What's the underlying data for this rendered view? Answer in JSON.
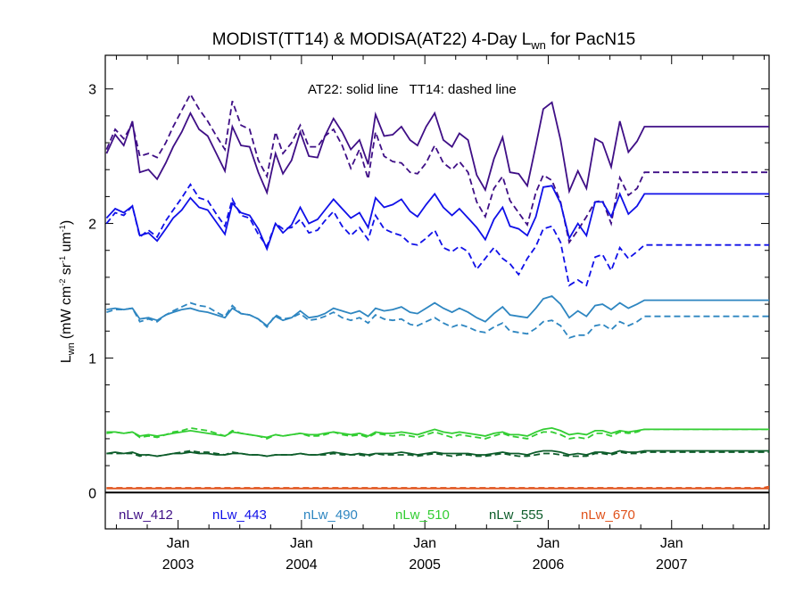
{
  "chart_data": {
    "type": "line",
    "title_prefix": "MODIST(TT14) & MODISA(AT22) 4-Day L",
    "title_sub": "wn",
    "title_suffix": " for PacN15",
    "annotation": "AT22: solid line   TT14: dashed line",
    "ylabel_main": "L",
    "ylabel_sub": "wn",
    "ylabel_units": "(mW cm",
    "ylabel_sup1": "-2",
    "ylabel_sr": " sr",
    "ylabel_sup2": "-1",
    "ylabel_um": " um",
    "ylabel_sup3": "-1",
    "ylabel_close": ")",
    "xlim": [
      2002.41,
      2007.79
    ],
    "ylim": [
      -0.27,
      3.25
    ],
    "yticks": [
      {
        "value": 0,
        "label": "0"
      },
      {
        "value": 1,
        "label": "1"
      },
      {
        "value": 2,
        "label": "2"
      },
      {
        "value": 3,
        "label": "3"
      }
    ],
    "xticks": [
      {
        "value": 2003.0,
        "line1": "Jan",
        "line2": "2003"
      },
      {
        "value": 2004.0,
        "line1": "Jan",
        "line2": "2004"
      },
      {
        "value": 2005.0,
        "line1": "Jan",
        "line2": "2005"
      },
      {
        "value": 2006.0,
        "line1": "Jan",
        "line2": "2006"
      },
      {
        "value": 2007.0,
        "line1": "Jan",
        "line2": "2007"
      }
    ],
    "x": [
      2002.42,
      2002.49,
      2002.56,
      2002.63,
      2002.69,
      2002.76,
      2002.83,
      2002.9,
      2002.96,
      2003.03,
      2003.1,
      2003.17,
      2003.24,
      2003.31,
      2003.38,
      2003.44,
      2003.51,
      2003.58,
      2003.65,
      2003.72,
      2003.79,
      2003.85,
      2003.92,
      2003.99,
      2004.06,
      2004.13,
      2004.19,
      2004.26,
      2004.33,
      2004.4,
      2004.47,
      2004.54,
      2004.6,
      2004.67,
      2004.74,
      2004.81,
      2004.88,
      2004.94,
      2005.01,
      2005.08,
      2005.15,
      2005.22,
      2005.28,
      2005.35,
      2005.42,
      2005.49,
      2005.56,
      2005.63,
      2005.69,
      2005.76,
      2005.83,
      2005.9,
      2005.96,
      2006.03,
      2006.1,
      2006.17,
      2006.24,
      2006.31,
      2006.38,
      2006.44,
      2006.51,
      2006.58,
      2006.65,
      2006.72,
      2006.78,
      2006.85,
      2006.92,
      2006.99,
      2007.06,
      2007.13,
      2007.19,
      2007.26,
      2007.33,
      2007.4,
      2007.47,
      2007.54,
      2007.6,
      2007.67,
      2007.74,
      2007.79
    ],
    "series": [
      {
        "name": "nLw_412",
        "color": "#3f0f86",
        "solid": [
          2.52,
          2.66,
          2.58,
          2.76,
          2.38,
          2.4,
          2.33,
          2.45,
          2.57,
          2.68,
          2.82,
          2.7,
          2.65,
          2.52,
          2.39,
          2.72,
          2.58,
          2.57,
          2.38,
          2.23,
          2.52,
          2.37,
          2.47,
          2.68,
          2.5,
          2.49,
          2.65,
          2.78,
          2.68,
          2.55,
          2.62,
          2.44,
          2.81,
          2.65,
          2.66,
          2.72,
          2.62,
          2.58,
          2.72,
          2.82,
          2.62,
          2.57,
          2.67,
          2.62,
          2.36,
          2.25,
          2.48,
          2.64,
          2.38,
          2.37,
          2.28,
          2.58,
          2.85,
          2.9,
          2.62,
          2.24,
          2.39,
          2.26,
          2.63,
          2.6,
          2.42,
          2.76,
          2.53,
          2.61,
          2.72,
          2.72,
          2.72,
          2.72,
          2.72,
          2.72,
          2.72,
          2.72,
          2.72,
          2.72,
          2.72,
          2.72,
          2.72,
          2.72,
          2.72,
          2.72
        ],
        "dashed": [
          2.55,
          2.7,
          2.63,
          2.74,
          2.5,
          2.52,
          2.49,
          2.6,
          2.72,
          2.84,
          2.96,
          2.85,
          2.76,
          2.65,
          2.55,
          2.91,
          2.73,
          2.7,
          2.47,
          2.35,
          2.68,
          2.52,
          2.6,
          2.73,
          2.57,
          2.57,
          2.65,
          2.7,
          2.58,
          2.41,
          2.55,
          2.33,
          2.68,
          2.5,
          2.46,
          2.45,
          2.38,
          2.37,
          2.45,
          2.58,
          2.45,
          2.4,
          2.46,
          2.38,
          2.16,
          2.05,
          2.26,
          2.35,
          2.17,
          2.08,
          1.99,
          2.23,
          2.36,
          2.32,
          2.16,
          1.86,
          1.95,
          2.05,
          2.16,
          2.17,
          2.0,
          2.34,
          2.21,
          2.26,
          2.38,
          2.38,
          2.38,
          2.38,
          2.38,
          2.38,
          2.38,
          2.38,
          2.38,
          2.38,
          2.38,
          2.38,
          2.38,
          2.38,
          2.38,
          2.38
        ]
      },
      {
        "name": "nLw_443",
        "color": "#1010e8",
        "solid": [
          2.04,
          2.11,
          2.08,
          2.13,
          1.91,
          1.93,
          1.87,
          1.96,
          2.04,
          2.1,
          2.19,
          2.12,
          2.1,
          2.01,
          1.92,
          2.15,
          2.08,
          2.06,
          1.96,
          1.81,
          2.0,
          1.93,
          1.99,
          2.12,
          2.0,
          2.03,
          2.1,
          2.18,
          2.11,
          2.04,
          2.08,
          1.97,
          2.19,
          2.12,
          2.14,
          2.18,
          2.09,
          2.05,
          2.14,
          2.22,
          2.12,
          2.06,
          2.11,
          2.04,
          1.97,
          1.88,
          2.03,
          2.12,
          1.98,
          1.96,
          1.91,
          2.05,
          2.27,
          2.28,
          2.15,
          1.89,
          2.0,
          1.91,
          2.16,
          2.16,
          2.05,
          2.22,
          2.07,
          2.13,
          2.22,
          2.22,
          2.22,
          2.22,
          2.22,
          2.22,
          2.22,
          2.22,
          2.22,
          2.22,
          2.22,
          2.22,
          2.22,
          2.22,
          2.22,
          2.22
        ],
        "dashed": [
          2.0,
          2.08,
          2.06,
          2.13,
          1.9,
          1.95,
          1.9,
          2.02,
          2.1,
          2.19,
          2.29,
          2.19,
          2.17,
          2.07,
          1.98,
          2.18,
          2.06,
          2.04,
          1.92,
          1.83,
          2.0,
          1.96,
          1.97,
          2.03,
          1.93,
          1.95,
          2.02,
          2.09,
          1.98,
          1.91,
          1.97,
          1.88,
          2.06,
          1.96,
          1.93,
          1.91,
          1.85,
          1.84,
          1.89,
          1.95,
          1.82,
          1.79,
          1.83,
          1.79,
          1.66,
          1.74,
          1.82,
          1.74,
          1.7,
          1.62,
          1.74,
          1.83,
          1.96,
          1.98,
          1.86,
          1.54,
          1.58,
          1.54,
          1.75,
          1.77,
          1.65,
          1.82,
          1.74,
          1.79,
          1.84,
          1.84,
          1.84,
          1.84,
          1.84,
          1.84,
          1.84,
          1.84,
          1.84,
          1.84,
          1.84,
          1.84,
          1.84,
          1.84,
          1.84,
          1.84
        ]
      },
      {
        "name": "nLw_490",
        "color": "#2e86c1",
        "solid": [
          1.36,
          1.37,
          1.36,
          1.37,
          1.29,
          1.3,
          1.28,
          1.32,
          1.34,
          1.36,
          1.37,
          1.35,
          1.34,
          1.32,
          1.3,
          1.37,
          1.33,
          1.32,
          1.29,
          1.24,
          1.31,
          1.28,
          1.3,
          1.35,
          1.3,
          1.31,
          1.33,
          1.37,
          1.35,
          1.33,
          1.35,
          1.31,
          1.37,
          1.35,
          1.36,
          1.38,
          1.34,
          1.33,
          1.37,
          1.41,
          1.37,
          1.34,
          1.37,
          1.34,
          1.3,
          1.27,
          1.33,
          1.38,
          1.32,
          1.31,
          1.3,
          1.37,
          1.44,
          1.46,
          1.4,
          1.3,
          1.35,
          1.31,
          1.39,
          1.4,
          1.36,
          1.41,
          1.37,
          1.4,
          1.43,
          1.43,
          1.43,
          1.43,
          1.43,
          1.43,
          1.43,
          1.43,
          1.43,
          1.43,
          1.43,
          1.43,
          1.43,
          1.43,
          1.43,
          1.43
        ],
        "dashed": [
          1.34,
          1.36,
          1.36,
          1.37,
          1.27,
          1.29,
          1.27,
          1.32,
          1.35,
          1.38,
          1.41,
          1.39,
          1.38,
          1.34,
          1.31,
          1.39,
          1.33,
          1.32,
          1.29,
          1.23,
          1.32,
          1.29,
          1.3,
          1.33,
          1.28,
          1.29,
          1.31,
          1.34,
          1.3,
          1.28,
          1.3,
          1.26,
          1.32,
          1.29,
          1.28,
          1.29,
          1.25,
          1.24,
          1.27,
          1.3,
          1.26,
          1.23,
          1.25,
          1.23,
          1.2,
          1.19,
          1.23,
          1.26,
          1.2,
          1.19,
          1.18,
          1.22,
          1.27,
          1.28,
          1.24,
          1.15,
          1.17,
          1.17,
          1.24,
          1.25,
          1.21,
          1.27,
          1.24,
          1.27,
          1.31,
          1.31,
          1.31,
          1.31,
          1.31,
          1.31,
          1.31,
          1.31,
          1.31,
          1.31,
          1.31,
          1.31,
          1.31,
          1.31,
          1.31,
          1.31
        ]
      },
      {
        "name": "nLw_510",
        "color": "#32cd32",
        "solid": [
          0.45,
          0.45,
          0.44,
          0.45,
          0.42,
          0.43,
          0.42,
          0.43,
          0.44,
          0.45,
          0.46,
          0.45,
          0.44,
          0.43,
          0.42,
          0.45,
          0.44,
          0.43,
          0.42,
          0.41,
          0.43,
          0.42,
          0.43,
          0.44,
          0.43,
          0.43,
          0.44,
          0.45,
          0.44,
          0.43,
          0.44,
          0.42,
          0.45,
          0.44,
          0.44,
          0.45,
          0.44,
          0.43,
          0.45,
          0.47,
          0.45,
          0.44,
          0.45,
          0.44,
          0.43,
          0.42,
          0.44,
          0.45,
          0.43,
          0.43,
          0.42,
          0.45,
          0.47,
          0.48,
          0.46,
          0.43,
          0.44,
          0.43,
          0.46,
          0.46,
          0.44,
          0.46,
          0.45,
          0.46,
          0.47,
          0.47,
          0.47,
          0.47,
          0.47,
          0.47,
          0.47,
          0.47,
          0.47,
          0.47,
          0.47,
          0.47,
          0.47,
          0.47,
          0.47,
          0.47
        ],
        "dashed": [
          0.44,
          0.45,
          0.44,
          0.45,
          0.41,
          0.42,
          0.41,
          0.43,
          0.45,
          0.46,
          0.48,
          0.47,
          0.46,
          0.44,
          0.42,
          0.46,
          0.44,
          0.43,
          0.42,
          0.4,
          0.43,
          0.42,
          0.43,
          0.44,
          0.42,
          0.42,
          0.43,
          0.45,
          0.43,
          0.42,
          0.43,
          0.41,
          0.44,
          0.43,
          0.42,
          0.43,
          0.42,
          0.41,
          0.43,
          0.45,
          0.43,
          0.41,
          0.43,
          0.42,
          0.41,
          0.4,
          0.42,
          0.44,
          0.42,
          0.41,
          0.4,
          0.43,
          0.45,
          0.45,
          0.43,
          0.4,
          0.41,
          0.4,
          0.44,
          0.44,
          0.42,
          0.45,
          0.44,
          0.45,
          0.47,
          0.47,
          0.47,
          0.47,
          0.47,
          0.47,
          0.47,
          0.47,
          0.47,
          0.47,
          0.47,
          0.47,
          0.47,
          0.47,
          0.47,
          0.47
        ]
      },
      {
        "name": "nLw_555",
        "color": "#0d5c2a",
        "solid": [
          0.29,
          0.3,
          0.29,
          0.3,
          0.28,
          0.28,
          0.27,
          0.28,
          0.29,
          0.29,
          0.3,
          0.29,
          0.29,
          0.28,
          0.28,
          0.29,
          0.29,
          0.28,
          0.28,
          0.27,
          0.28,
          0.28,
          0.28,
          0.29,
          0.28,
          0.28,
          0.29,
          0.3,
          0.29,
          0.28,
          0.29,
          0.28,
          0.29,
          0.29,
          0.29,
          0.3,
          0.29,
          0.28,
          0.29,
          0.3,
          0.29,
          0.29,
          0.29,
          0.29,
          0.28,
          0.28,
          0.29,
          0.3,
          0.29,
          0.29,
          0.28,
          0.3,
          0.31,
          0.31,
          0.3,
          0.28,
          0.29,
          0.28,
          0.3,
          0.3,
          0.29,
          0.31,
          0.3,
          0.3,
          0.31,
          0.31,
          0.31,
          0.31,
          0.31,
          0.31,
          0.31,
          0.31,
          0.31,
          0.31,
          0.31,
          0.31,
          0.31,
          0.31,
          0.31,
          0.31
        ],
        "dashed": [
          0.29,
          0.29,
          0.29,
          0.29,
          0.27,
          0.28,
          0.27,
          0.28,
          0.29,
          0.3,
          0.31,
          0.3,
          0.3,
          0.29,
          0.28,
          0.3,
          0.29,
          0.28,
          0.28,
          0.27,
          0.28,
          0.28,
          0.28,
          0.29,
          0.28,
          0.28,
          0.28,
          0.29,
          0.28,
          0.28,
          0.28,
          0.27,
          0.29,
          0.28,
          0.28,
          0.28,
          0.28,
          0.27,
          0.28,
          0.29,
          0.28,
          0.27,
          0.28,
          0.28,
          0.27,
          0.27,
          0.28,
          0.29,
          0.28,
          0.27,
          0.27,
          0.28,
          0.29,
          0.29,
          0.28,
          0.27,
          0.27,
          0.27,
          0.29,
          0.29,
          0.28,
          0.3,
          0.29,
          0.29,
          0.3,
          0.3,
          0.3,
          0.3,
          0.3,
          0.3,
          0.3,
          0.3,
          0.3,
          0.3,
          0.3,
          0.3,
          0.3,
          0.3,
          0.3,
          0.3
        ]
      },
      {
        "name": "nLw_670",
        "color": "#e0521b",
        "solid": [
          0.03,
          0.03,
          0.03,
          0.03,
          0.03,
          0.03,
          0.03,
          0.03,
          0.03,
          0.03,
          0.03,
          0.03,
          0.03,
          0.03,
          0.03,
          0.03,
          0.03,
          0.03,
          0.03,
          0.03,
          0.03,
          0.03,
          0.03,
          0.03,
          0.03,
          0.03,
          0.03,
          0.03,
          0.03,
          0.03,
          0.03,
          0.03,
          0.03,
          0.03,
          0.03,
          0.03,
          0.03,
          0.03,
          0.03,
          0.03,
          0.03,
          0.03,
          0.03,
          0.03,
          0.03,
          0.03,
          0.03,
          0.03,
          0.03,
          0.03,
          0.03,
          0.03,
          0.03,
          0.03,
          0.03,
          0.03,
          0.03,
          0.03,
          0.03,
          0.03,
          0.03,
          0.03,
          0.03,
          0.03,
          0.03,
          0.03,
          0.03,
          0.03,
          0.03,
          0.03,
          0.03,
          0.03,
          0.03,
          0.03,
          0.03,
          0.03,
          0.03,
          0.03,
          0.03,
          0.03
        ],
        "dashed": [
          0.035,
          0.035,
          0.035,
          0.035,
          0.035,
          0.035,
          0.035,
          0.035,
          0.035,
          0.035,
          0.035,
          0.035,
          0.035,
          0.035,
          0.035,
          0.035,
          0.035,
          0.035,
          0.035,
          0.035,
          0.035,
          0.035,
          0.035,
          0.035,
          0.035,
          0.035,
          0.035,
          0.035,
          0.035,
          0.035,
          0.035,
          0.035,
          0.035,
          0.035,
          0.035,
          0.035,
          0.035,
          0.035,
          0.035,
          0.035,
          0.035,
          0.035,
          0.035,
          0.035,
          0.035,
          0.035,
          0.035,
          0.035,
          0.035,
          0.035,
          0.035,
          0.035,
          0.035,
          0.035,
          0.035,
          0.035,
          0.035,
          0.035,
          0.035,
          0.035,
          0.035,
          0.035,
          0.035,
          0.035,
          0.035,
          0.035,
          0.035,
          0.035,
          0.035,
          0.035,
          0.035,
          0.035,
          0.035,
          0.035,
          0.035,
          0.035,
          0.035,
          0.035,
          0.035,
          0.045
        ]
      }
    ],
    "zero_line_color": "#000000",
    "grid": false,
    "legend_position": "bottom"
  }
}
